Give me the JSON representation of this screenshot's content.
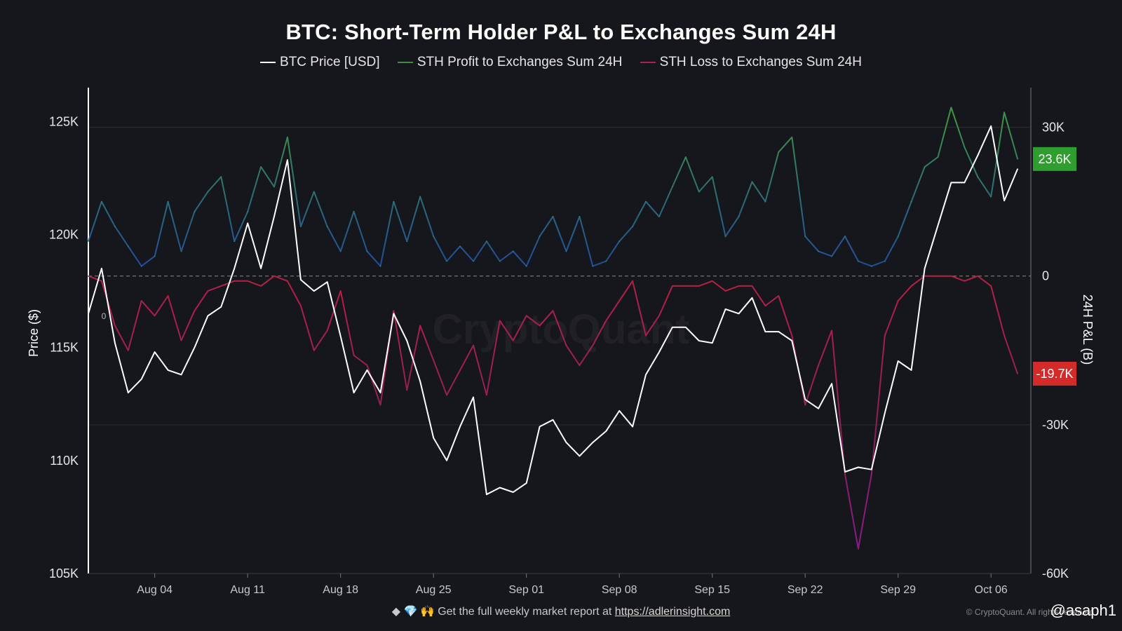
{
  "title": "BTC: Short-Term Holder P&L to Exchanges Sum 24H",
  "legend": [
    {
      "label": "BTC Price [USD]",
      "color": "#ffffff"
    },
    {
      "label": "STH Profit to Exchanges Sum 24H",
      "color": "#3f8f3f"
    },
    {
      "label": "STH Loss to Exchanges Sum 24H",
      "color": "#a8244a"
    }
  ],
  "watermark": "CryptoQuant",
  "zero_marker": "0",
  "footer": {
    "icons": "◆ 💎 🙌",
    "text": "Get the full weekly market report at",
    "link": "https://adlerinsight.com"
  },
  "copyright": "© CryptoQuant. All rights reserved",
  "handle": "@asaph1",
  "chart_data": {
    "type": "line",
    "title": "BTC: Short-Term Holder P&L to Exchanges Sum 24H",
    "x_ticks": [
      "Aug 04",
      "Aug 11",
      "Aug 18",
      "Aug 25",
      "Sep 01",
      "Sep 08",
      "Sep 15",
      "Sep 22",
      "Sep 29",
      "Oct 06"
    ],
    "x_range": [
      "2025-07-30",
      "2025-10-09"
    ],
    "left_axis": {
      "label": "Price ($)",
      "range": [
        105000,
        126500
      ],
      "ticks": [
        105000,
        110000,
        115000,
        120000,
        125000
      ],
      "tick_labels": [
        "105K",
        "110K",
        "115K",
        "120K",
        "125K"
      ]
    },
    "right_axis": {
      "label": "24H P&L (B)",
      "range": [
        -60000,
        38000
      ],
      "ticks": [
        -60000,
        -30000,
        0,
        30000
      ],
      "tick_labels": [
        "-60K",
        "-30K",
        "0",
        "30K"
      ]
    },
    "badges": [
      {
        "label": "23.6K",
        "value": 23600,
        "color": "#2e9e2e"
      },
      {
        "label": "-19.7K",
        "value": -19700,
        "color": "#d42a2a"
      }
    ],
    "grid": true,
    "series": [
      {
        "name": "BTC Price [USD]",
        "axis": "left",
        "color": "#ffffff",
        "points": [
          [
            "2025-07-30",
            116500
          ],
          [
            "2025-07-31",
            118500
          ],
          [
            "2025-08-01",
            115200
          ],
          [
            "2025-08-02",
            113000
          ],
          [
            "2025-08-03",
            113600
          ],
          [
            "2025-08-04",
            114800
          ],
          [
            "2025-08-05",
            114000
          ],
          [
            "2025-08-06",
            113800
          ],
          [
            "2025-08-07",
            115000
          ],
          [
            "2025-08-08",
            116400
          ],
          [
            "2025-08-09",
            116800
          ],
          [
            "2025-08-10",
            118500
          ],
          [
            "2025-08-11",
            120500
          ],
          [
            "2025-08-12",
            118500
          ],
          [
            "2025-08-13",
            120800
          ],
          [
            "2025-08-14",
            123300
          ],
          [
            "2025-08-15",
            118000
          ],
          [
            "2025-08-16",
            117500
          ],
          [
            "2025-08-17",
            117900
          ],
          [
            "2025-08-18",
            115500
          ],
          [
            "2025-08-19",
            113000
          ],
          [
            "2025-08-20",
            114000
          ],
          [
            "2025-08-21",
            113000
          ],
          [
            "2025-08-22",
            116500
          ],
          [
            "2025-08-23",
            115300
          ],
          [
            "2025-08-24",
            113500
          ],
          [
            "2025-08-25",
            111000
          ],
          [
            "2025-08-26",
            110000
          ],
          [
            "2025-08-27",
            111500
          ],
          [
            "2025-08-28",
            112800
          ],
          [
            "2025-08-29",
            108500
          ],
          [
            "2025-08-30",
            108800
          ],
          [
            "2025-08-31",
            108600
          ],
          [
            "2025-09-01",
            109000
          ],
          [
            "2025-09-02",
            111500
          ],
          [
            "2025-09-03",
            111800
          ],
          [
            "2025-09-04",
            110800
          ],
          [
            "2025-09-05",
            110200
          ],
          [
            "2025-09-06",
            110800
          ],
          [
            "2025-09-07",
            111300
          ],
          [
            "2025-09-08",
            112200
          ],
          [
            "2025-09-09",
            111500
          ],
          [
            "2025-09-10",
            113800
          ],
          [
            "2025-09-11",
            114800
          ],
          [
            "2025-09-12",
            115900
          ],
          [
            "2025-09-13",
            115900
          ],
          [
            "2025-09-14",
            115300
          ],
          [
            "2025-09-15",
            115200
          ],
          [
            "2025-09-16",
            116700
          ],
          [
            "2025-09-17",
            116500
          ],
          [
            "2025-09-18",
            117200
          ],
          [
            "2025-09-19",
            115700
          ],
          [
            "2025-09-20",
            115700
          ],
          [
            "2025-09-21",
            115300
          ],
          [
            "2025-09-22",
            112700
          ],
          [
            "2025-09-23",
            112300
          ],
          [
            "2025-09-24",
            113400
          ],
          [
            "2025-09-25",
            109500
          ],
          [
            "2025-09-26",
            109700
          ],
          [
            "2025-09-27",
            109600
          ],
          [
            "2025-09-28",
            112100
          ],
          [
            "2025-09-29",
            114400
          ],
          [
            "2025-09-30",
            114000
          ],
          [
            "2025-10-01",
            118500
          ],
          [
            "2025-10-02",
            120400
          ],
          [
            "2025-10-03",
            122300
          ],
          [
            "2025-10-04",
            122300
          ],
          [
            "2025-10-05",
            123500
          ],
          [
            "2025-10-06",
            124800
          ],
          [
            "2025-10-07",
            121500
          ],
          [
            "2025-10-08",
            122900
          ]
        ]
      },
      {
        "name": "STH Profit to Exchanges Sum 24H",
        "axis": "right",
        "color": "#3f8f3f",
        "points": [
          [
            "2025-07-30",
            7000
          ],
          [
            "2025-07-31",
            15000
          ],
          [
            "2025-08-01",
            10000
          ],
          [
            "2025-08-02",
            6000
          ],
          [
            "2025-08-03",
            2000
          ],
          [
            "2025-08-04",
            4000
          ],
          [
            "2025-08-05",
            15000
          ],
          [
            "2025-08-06",
            5000
          ],
          [
            "2025-08-07",
            13000
          ],
          [
            "2025-08-08",
            17000
          ],
          [
            "2025-08-09",
            20000
          ],
          [
            "2025-08-10",
            7000
          ],
          [
            "2025-08-11",
            13000
          ],
          [
            "2025-08-12",
            22000
          ],
          [
            "2025-08-13",
            18000
          ],
          [
            "2025-08-14",
            28000
          ],
          [
            "2025-08-15",
            10000
          ],
          [
            "2025-08-16",
            17000
          ],
          [
            "2025-08-17",
            10000
          ],
          [
            "2025-08-18",
            5000
          ],
          [
            "2025-08-19",
            13000
          ],
          [
            "2025-08-20",
            5000
          ],
          [
            "2025-08-21",
            2000
          ],
          [
            "2025-08-22",
            15000
          ],
          [
            "2025-08-23",
            7000
          ],
          [
            "2025-08-24",
            16000
          ],
          [
            "2025-08-25",
            8000
          ],
          [
            "2025-08-26",
            3000
          ],
          [
            "2025-08-27",
            6000
          ],
          [
            "2025-08-28",
            3000
          ],
          [
            "2025-08-29",
            7000
          ],
          [
            "2025-08-30",
            3000
          ],
          [
            "2025-08-31",
            5000
          ],
          [
            "2025-09-01",
            2000
          ],
          [
            "2025-09-02",
            8000
          ],
          [
            "2025-09-03",
            12000
          ],
          [
            "2025-09-04",
            5000
          ],
          [
            "2025-09-05",
            12000
          ],
          [
            "2025-09-06",
            2000
          ],
          [
            "2025-09-07",
            3000
          ],
          [
            "2025-09-08",
            7000
          ],
          [
            "2025-09-09",
            10000
          ],
          [
            "2025-09-10",
            15000
          ],
          [
            "2025-09-11",
            12000
          ],
          [
            "2025-09-12",
            18000
          ],
          [
            "2025-09-13",
            24000
          ],
          [
            "2025-09-14",
            17000
          ],
          [
            "2025-09-15",
            20000
          ],
          [
            "2025-09-16",
            8000
          ],
          [
            "2025-09-17",
            12000
          ],
          [
            "2025-09-18",
            19000
          ],
          [
            "2025-09-19",
            15000
          ],
          [
            "2025-09-20",
            25000
          ],
          [
            "2025-09-21",
            28000
          ],
          [
            "2025-09-22",
            8000
          ],
          [
            "2025-09-23",
            5000
          ],
          [
            "2025-09-24",
            4000
          ],
          [
            "2025-09-25",
            8000
          ],
          [
            "2025-09-26",
            3000
          ],
          [
            "2025-09-27",
            2000
          ],
          [
            "2025-09-28",
            3000
          ],
          [
            "2025-09-29",
            8000
          ],
          [
            "2025-09-30",
            15000
          ],
          [
            "2025-10-01",
            22000
          ],
          [
            "2025-10-02",
            24000
          ],
          [
            "2025-10-03",
            34000
          ],
          [
            "2025-10-04",
            26000
          ],
          [
            "2025-10-05",
            20000
          ],
          [
            "2025-10-06",
            16000
          ],
          [
            "2025-10-07",
            33000
          ],
          [
            "2025-10-08",
            23600
          ]
        ]
      },
      {
        "name": "STH Loss to Exchanges Sum 24H",
        "axis": "right",
        "color": "#a8244a",
        "points": [
          [
            "2025-07-30",
            0
          ],
          [
            "2025-07-31",
            -1000
          ],
          [
            "2025-08-01",
            -10000
          ],
          [
            "2025-08-02",
            -15000
          ],
          [
            "2025-08-03",
            -5000
          ],
          [
            "2025-08-04",
            -8000
          ],
          [
            "2025-08-05",
            -4000
          ],
          [
            "2025-08-06",
            -13000
          ],
          [
            "2025-08-07",
            -7000
          ],
          [
            "2025-08-08",
            -3000
          ],
          [
            "2025-08-09",
            -2000
          ],
          [
            "2025-08-10",
            -1000
          ],
          [
            "2025-08-11",
            -1000
          ],
          [
            "2025-08-12",
            -2000
          ],
          [
            "2025-08-13",
            0
          ],
          [
            "2025-08-14",
            -1000
          ],
          [
            "2025-08-15",
            -6000
          ],
          [
            "2025-08-16",
            -15000
          ],
          [
            "2025-08-17",
            -11000
          ],
          [
            "2025-08-18",
            -3000
          ],
          [
            "2025-08-19",
            -16000
          ],
          [
            "2025-08-20",
            -18000
          ],
          [
            "2025-08-21",
            -26000
          ],
          [
            "2025-08-22",
            -7000
          ],
          [
            "2025-08-23",
            -23000
          ],
          [
            "2025-08-24",
            -10000
          ],
          [
            "2025-08-25",
            -17000
          ],
          [
            "2025-08-26",
            -24000
          ],
          [
            "2025-08-27",
            -19000
          ],
          [
            "2025-08-28",
            -14000
          ],
          [
            "2025-08-29",
            -24000
          ],
          [
            "2025-08-30",
            -9000
          ],
          [
            "2025-08-31",
            -13000
          ],
          [
            "2025-09-01",
            -8000
          ],
          [
            "2025-09-02",
            -10000
          ],
          [
            "2025-09-03",
            -7000
          ],
          [
            "2025-09-04",
            -14000
          ],
          [
            "2025-09-05",
            -18000
          ],
          [
            "2025-09-06",
            -14000
          ],
          [
            "2025-09-07",
            -9000
          ],
          [
            "2025-09-08",
            -5000
          ],
          [
            "2025-09-09",
            -1000
          ],
          [
            "2025-09-10",
            -12000
          ],
          [
            "2025-09-11",
            -8000
          ],
          [
            "2025-09-12",
            -2000
          ],
          [
            "2025-09-13",
            -2000
          ],
          [
            "2025-09-14",
            -2000
          ],
          [
            "2025-09-15",
            -1000
          ],
          [
            "2025-09-16",
            -3000
          ],
          [
            "2025-09-17",
            -2000
          ],
          [
            "2025-09-18",
            -2000
          ],
          [
            "2025-09-19",
            -6000
          ],
          [
            "2025-09-20",
            -4000
          ],
          [
            "2025-09-21",
            -12000
          ],
          [
            "2025-09-22",
            -26000
          ],
          [
            "2025-09-23",
            -18000
          ],
          [
            "2025-09-24",
            -11000
          ],
          [
            "2025-09-25",
            -40000
          ],
          [
            "2025-09-26",
            -55000
          ],
          [
            "2025-09-27",
            -40000
          ],
          [
            "2025-09-28",
            -12000
          ],
          [
            "2025-09-29",
            -5000
          ],
          [
            "2025-09-30",
            -2000
          ],
          [
            "2025-10-01",
            0
          ],
          [
            "2025-10-02",
            0
          ],
          [
            "2025-10-03",
            0
          ],
          [
            "2025-10-04",
            -1000
          ],
          [
            "2025-10-05",
            0
          ],
          [
            "2025-10-06",
            -2000
          ],
          [
            "2025-10-07",
            -12000
          ],
          [
            "2025-10-08",
            -19700
          ]
        ]
      }
    ]
  }
}
